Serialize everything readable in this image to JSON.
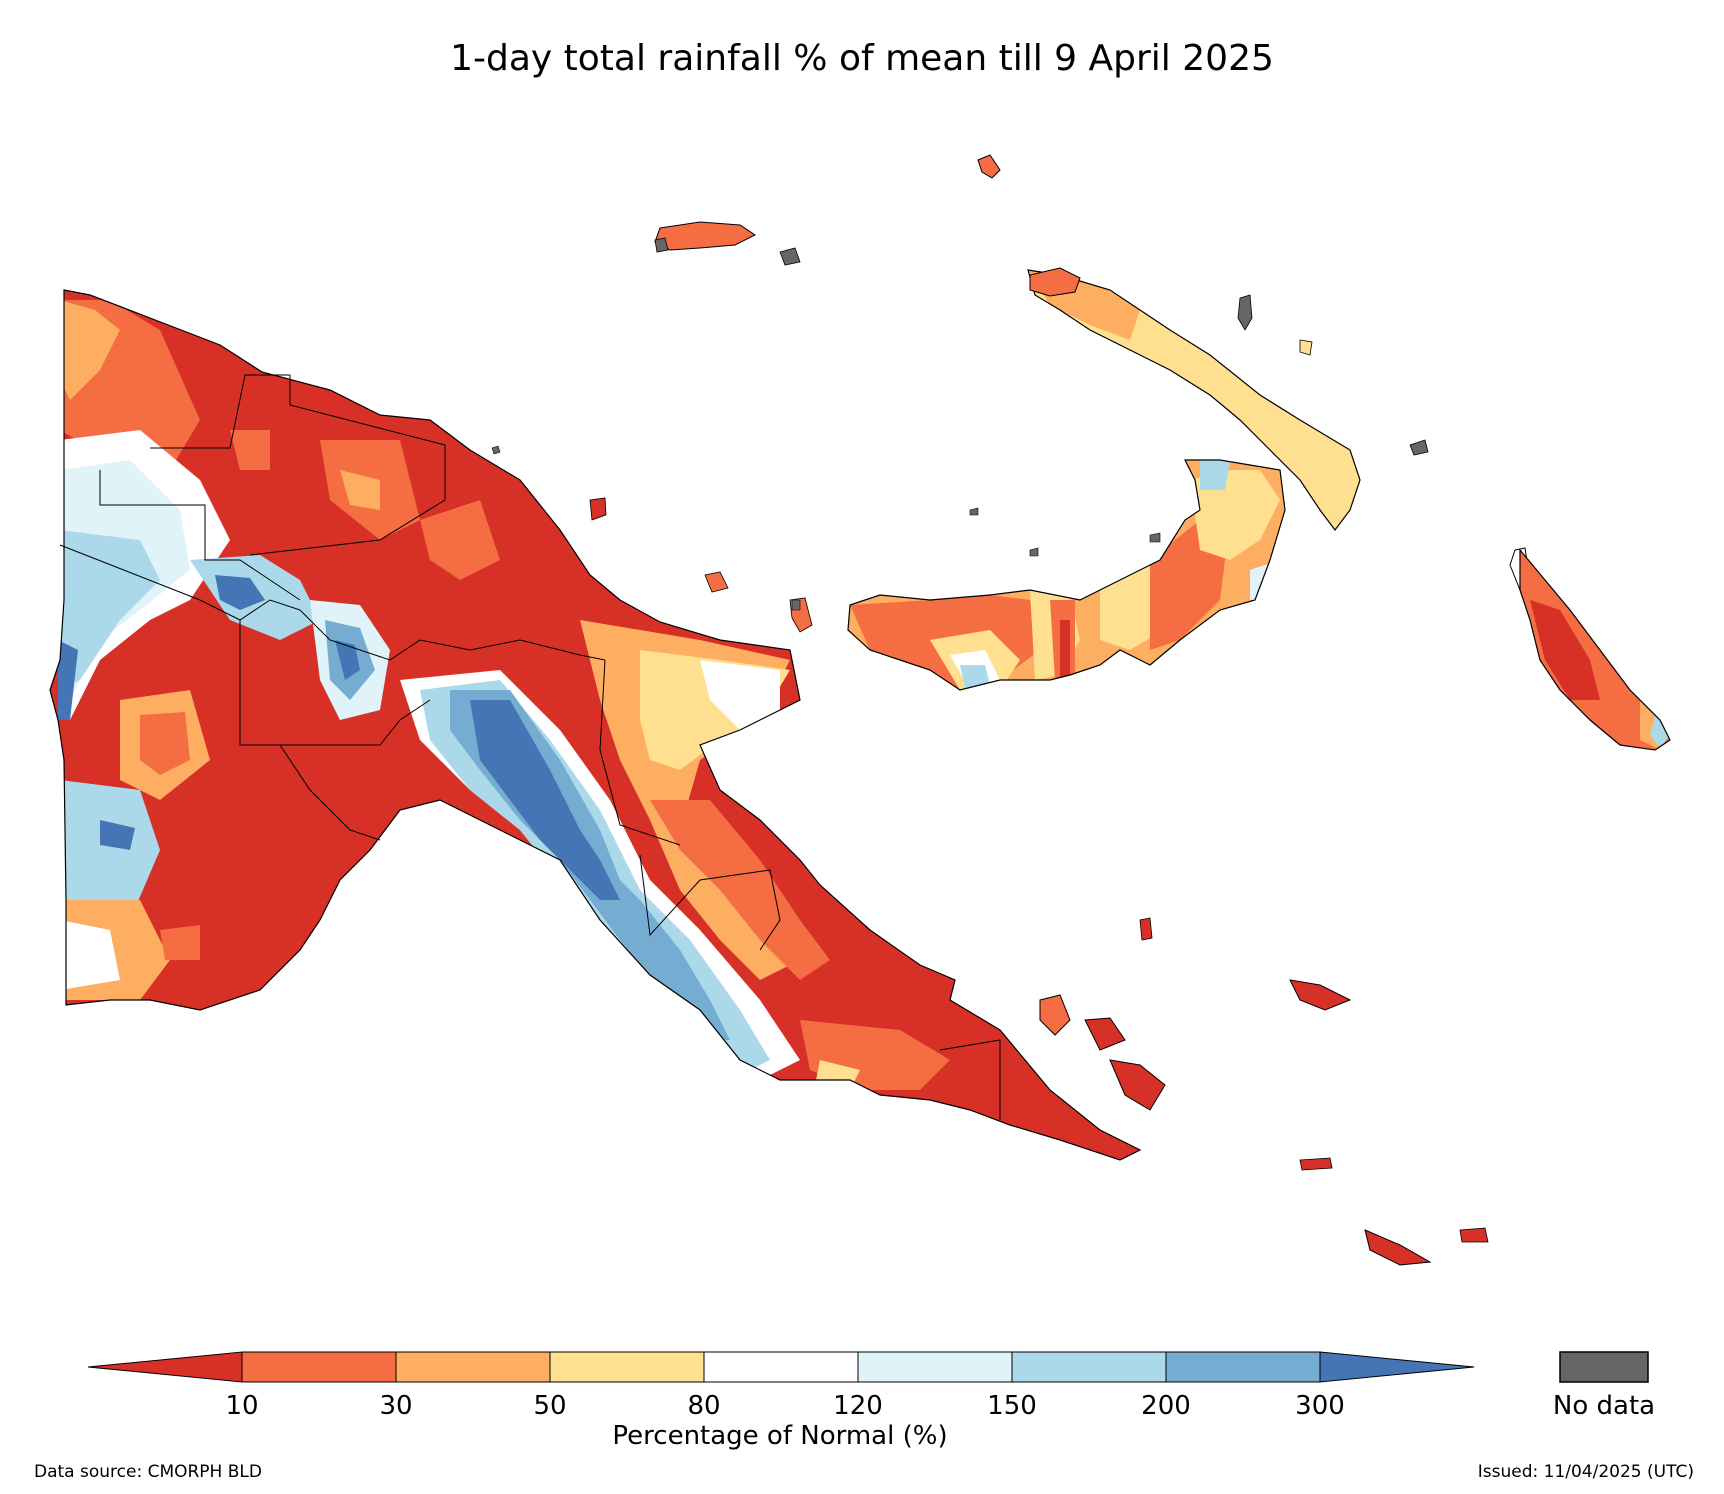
{
  "title": "1-day total rainfall % of mean till 9 April 2025",
  "legend": {
    "title": "Percentage of Normal (%)",
    "ticks": [
      "10",
      "30",
      "50",
      "80",
      "120",
      "150",
      "200",
      "300"
    ],
    "bins": [
      {
        "color": "#d73027"
      },
      {
        "color": "#f46d43"
      },
      {
        "color": "#fdae61"
      },
      {
        "color": "#fee090"
      },
      {
        "color": "#ffffff"
      },
      {
        "color": "#e0f3f8"
      },
      {
        "color": "#abd9e9"
      },
      {
        "color": "#74add1"
      },
      {
        "color": "#4575b4"
      }
    ],
    "no_data_label": "No data",
    "no_data_color": "#666666"
  },
  "footer": {
    "data_source": "Data source: CMORPH BLD",
    "issued": "Issued: 11/04/2025 (UTC)"
  }
}
